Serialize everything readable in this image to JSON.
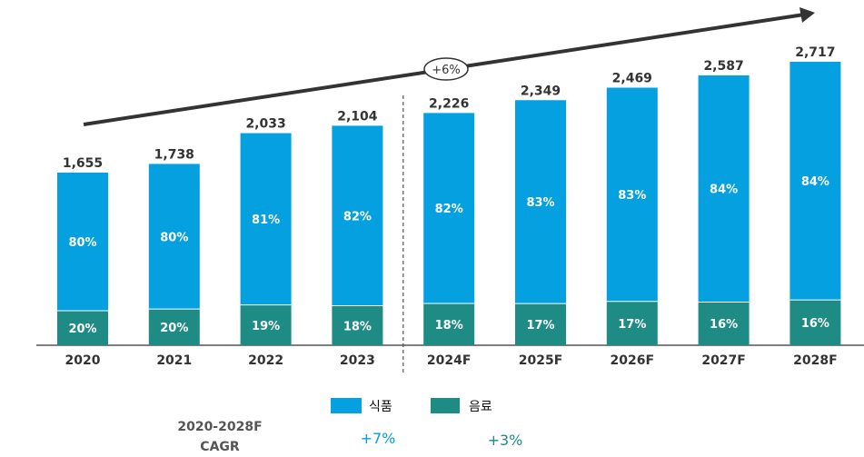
{
  "chart_data": {
    "type": "bar",
    "stacked": true,
    "categories": [
      "2020",
      "2021",
      "2022",
      "2023",
      "2024F",
      "2025F",
      "2026F",
      "2027F",
      "2028F"
    ],
    "totals": [
      1655,
      1738,
      2033,
      2104,
      2226,
      2349,
      2469,
      2587,
      2717
    ],
    "total_labels": [
      "1,655",
      "1,738",
      "2,033",
      "2,104",
      "2,226",
      "2,349",
      "2,469",
      "2,587",
      "2,717"
    ],
    "series": [
      {
        "name": "식품",
        "color": "#05A0E0",
        "share_pct": [
          80,
          80,
          81,
          82,
          82,
          83,
          83,
          84,
          84
        ]
      },
      {
        "name": "음료",
        "color": "#1E8C84",
        "share_pct": [
          20,
          20,
          19,
          18,
          18,
          17,
          17,
          16,
          16
        ]
      }
    ],
    "forecast_divider_after": "2023",
    "trend_annotation": "+6%",
    "cagr": {
      "label_line1": "2020-2028F",
      "label_line2": "CAGR",
      "food": "+7%",
      "beverage": "+3%"
    },
    "ylim": [
      0,
      2717
    ]
  }
}
